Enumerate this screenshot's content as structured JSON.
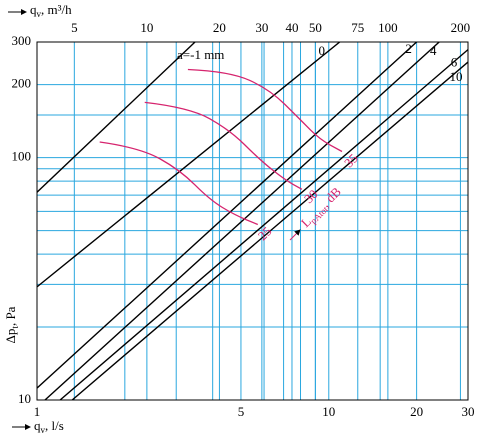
{
  "chart_data": {
    "type": "line",
    "x_label": {
      "main": "q",
      "sub": "v",
      "unit": ", l/s"
    },
    "x2_label": {
      "main": "q",
      "sub": "v",
      "unit": ", m³/h"
    },
    "y_label": {
      "main": "Δp",
      "sub": "t",
      "unit": ", Pa"
    },
    "annotation": {
      "main": "L",
      "sub": "pAtot",
      "unit": ", dB"
    },
    "xscale": "log",
    "yscale": "log",
    "grid": true,
    "grid_color": "#2aa7df",
    "xlim": [
      1,
      30
    ],
    "xticks": [
      1,
      5,
      10,
      20,
      30
    ],
    "xminor": [
      2,
      3,
      4,
      6,
      7,
      8,
      9,
      15
    ],
    "x2lim": [
      3.5,
      215
    ],
    "x2ticks": [
      5,
      10,
      20,
      30,
      40,
      50,
      75,
      100,
      200
    ],
    "ylim": [
      10,
      300
    ],
    "yticks": [
      10,
      100,
      200,
      300
    ],
    "yminor": [
      20,
      30,
      40,
      50,
      60,
      70,
      80,
      90,
      150
    ],
    "series": [
      {
        "name": "a=-1 mm",
        "color": "#000000",
        "x": [
          1,
          3.48
        ],
        "values": [
          72,
          300
        ]
      },
      {
        "name": "0",
        "color": "#000000",
        "x": [
          1,
          10.9
        ],
        "values": [
          29.3,
          300
        ]
      },
      {
        "name": "2",
        "color": "#000000",
        "x": [
          1,
          20
        ],
        "values": [
          11.2,
          300
        ]
      },
      {
        "name": "4",
        "color": "#000000",
        "x": [
          1.065,
          23.9
        ],
        "values": [
          10,
          300
        ]
      },
      {
        "name": "6",
        "color": "#000000",
        "x": [
          1.2,
          30
        ],
        "values": [
          10,
          279
        ]
      },
      {
        "name": "10",
        "color": "#000000",
        "x": [
          1.32,
          30
        ],
        "values": [
          10,
          248
        ]
      },
      {
        "name": "35",
        "color": "#d6246e",
        "x": [
          3.29,
          4.58,
          6.28,
          7.96,
          9.31,
          11.1
        ],
        "values": [
          231,
          227,
          191,
          144,
          119,
          106
        ]
      },
      {
        "name": "30",
        "color": "#d6246e",
        "x": [
          2.34,
          3.34,
          4.58,
          5.8,
          7.07,
          8.09
        ],
        "values": [
          169,
          161,
          130,
          98,
          81,
          74
        ]
      },
      {
        "name": "25",
        "color": "#d6246e",
        "x": [
          1.64,
          2.25,
          3.09,
          3.91,
          4.76,
          5.71
        ],
        "values": [
          116,
          110,
          89,
          67,
          58,
          53
        ]
      }
    ]
  }
}
